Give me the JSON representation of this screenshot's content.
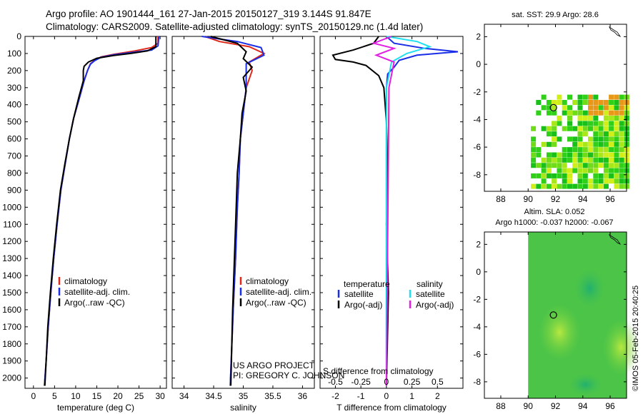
{
  "header": {
    "line1": "Argo profile: AO 1901444_161 27-Jan-2015 20150127_319 3.144S 91.847E",
    "line2": "Climatology: CARS2009. Satellite-adjusted climatology: synTS_20150129.nc (1.4d later)"
  },
  "colors": {
    "climatology": "#e0281a",
    "satellite": "#1a2ee8",
    "argo": "#000000",
    "sat_cyan": "#20e0f0",
    "argo_magenta": "#e020e0"
  },
  "depth_axis": {
    "ticks": [
      0,
      100,
      200,
      300,
      400,
      500,
      600,
      700,
      800,
      900,
      1000,
      1100,
      1200,
      1300,
      1400,
      1500,
      1600,
      1700,
      1800,
      1900,
      2000
    ],
    "range": [
      0,
      2060
    ]
  },
  "chart_data": [
    {
      "type": "line",
      "id": "temperature",
      "xlabel": "temperature (deg C)",
      "xticks": [
        0,
        5,
        10,
        15,
        20,
        25,
        30
      ],
      "xlim": [
        -2,
        31.5
      ],
      "legend": [
        "climatology",
        "satellite-adj. clim.",
        "Argo(..raw -QC)"
      ],
      "series": [
        {
          "name": "climatology",
          "color": "#e0281a",
          "points": [
            [
              29.5,
              0
            ],
            [
              29.5,
              40
            ],
            [
              28,
              65
            ],
            [
              24,
              85
            ],
            [
              19,
              105
            ],
            [
              16,
              120
            ],
            [
              14.5,
              140
            ],
            [
              13.5,
              160
            ],
            [
              12.8,
              200
            ],
            [
              12,
              260
            ],
            [
              11,
              350
            ],
            [
              9.5,
              480
            ],
            [
              8.5,
              600
            ],
            [
              7.5,
              750
            ],
            [
              6.5,
              900
            ],
            [
              5.6,
              1100
            ],
            [
              4.8,
              1300
            ],
            [
              4.1,
              1500
            ],
            [
              3.5,
              1700
            ],
            [
              3.0,
              1900
            ],
            [
              2.6,
              2045
            ]
          ]
        },
        {
          "name": "satellite-adj. clim.",
          "color": "#1a2ee8",
          "points": [
            [
              29.7,
              0
            ],
            [
              29.5,
              55
            ],
            [
              28,
              80
            ],
            [
              24,
              92
            ],
            [
              19,
              108
            ],
            [
              16,
              122
            ],
            [
              14.5,
              142
            ],
            [
              13.5,
              162
            ],
            [
              12.8,
              200
            ],
            [
              12,
              260
            ],
            [
              11,
              350
            ],
            [
              9.5,
              480
            ],
            [
              8.5,
              600
            ],
            [
              7.5,
              750
            ],
            [
              6.5,
              900
            ],
            [
              5.6,
              1100
            ],
            [
              4.8,
              1300
            ],
            [
              4.1,
              1500
            ],
            [
              3.5,
              1700
            ],
            [
              3.0,
              1900
            ],
            [
              2.6,
              2045
            ]
          ]
        },
        {
          "name": "Argo(..raw -QC)",
          "color": "#000000",
          "points": [
            [
              29.0,
              0
            ],
            [
              29.0,
              60
            ],
            [
              27,
              85
            ],
            [
              23,
              100
            ],
            [
              19,
              112
            ],
            [
              15,
              128
            ],
            [
              13,
              150
            ],
            [
              12,
              175
            ],
            [
              11.8,
              200
            ],
            [
              11.8,
              260
            ],
            [
              10.8,
              350
            ],
            [
              9.5,
              480
            ],
            [
              8.5,
              600
            ],
            [
              7.4,
              750
            ],
            [
              6.4,
              900
            ],
            [
              5.5,
              1100
            ],
            [
              4.7,
              1300
            ],
            [
              4.0,
              1500
            ],
            [
              3.4,
              1700
            ],
            [
              3.0,
              1900
            ],
            [
              2.7,
              2045
            ]
          ]
        }
      ]
    },
    {
      "type": "line",
      "id": "salinity",
      "xlabel": "salinity",
      "xticks": [
        34,
        34.5,
        35,
        35.5,
        36
      ],
      "xlim": [
        33.8,
        36.2
      ],
      "legend": [
        "climatology",
        "satellite-adj. clim.",
        "Argo(..raw -QC)"
      ],
      "series": [
        {
          "name": "climatology",
          "color": "#e0281a",
          "points": [
            [
              34.35,
              0
            ],
            [
              34.6,
              30
            ],
            [
              35.1,
              60
            ],
            [
              35.35,
              100
            ],
            [
              35.1,
              150
            ],
            [
              35.15,
              200
            ],
            [
              35.05,
              300
            ],
            [
              35.0,
              450
            ],
            [
              34.95,
              600
            ],
            [
              34.93,
              800
            ],
            [
              34.9,
              1000
            ],
            [
              34.87,
              1300
            ],
            [
              34.83,
              1600
            ],
            [
              34.78,
              2045
            ]
          ]
        },
        {
          "name": "satellite-adj. clim.",
          "color": "#1a2ee8",
          "points": [
            [
              34.3,
              0
            ],
            [
              34.9,
              30
            ],
            [
              35.3,
              65
            ],
            [
              35.35,
              110
            ],
            [
              35.05,
              160
            ],
            [
              35.05,
              200
            ],
            [
              35.05,
              300
            ],
            [
              35.0,
              450
            ],
            [
              34.95,
              600
            ],
            [
              34.93,
              800
            ],
            [
              34.9,
              1000
            ],
            [
              34.87,
              1300
            ],
            [
              34.83,
              1600
            ],
            [
              34.78,
              2045
            ]
          ]
        },
        {
          "name": "Argo(..raw -QC)",
          "color": "#000000",
          "points": [
            [
              34.45,
              0
            ],
            [
              34.9,
              40
            ],
            [
              35.05,
              90
            ],
            [
              35.0,
              130
            ],
            [
              35.15,
              180
            ],
            [
              35.0,
              240
            ],
            [
              35.05,
              320
            ],
            [
              34.98,
              450
            ],
            [
              34.95,
              600
            ],
            [
              34.9,
              800
            ],
            [
              34.88,
              1000
            ],
            [
              34.85,
              1300
            ],
            [
              34.82,
              1600
            ],
            [
              34.79,
              2045
            ]
          ]
        }
      ]
    },
    {
      "type": "line",
      "id": "difference",
      "xlabel": "T difference from climatology",
      "xlabel_top": "S difference from climatology",
      "xticks": [
        -2,
        -1,
        0,
        1,
        2
      ],
      "xticks_top": [
        "-0.5",
        "-0.25",
        "0",
        "0.25",
        "0.5"
      ],
      "xticks_top_pos": [
        -2,
        -1,
        0,
        1,
        2
      ],
      "xlim": [
        -2.6,
        3.0
      ],
      "legend_headers": [
        "temperature",
        "salinity"
      ],
      "legend": [
        "satellite",
        "Argo(-adj)",
        "satellite",
        "Argo(-adj)"
      ],
      "series": [
        {
          "name": "satellite",
          "group": "temperature",
          "color": "#1a2ee8",
          "points": [
            [
              0,
              0
            ],
            [
              0.3,
              40
            ],
            [
              1.5,
              70
            ],
            [
              2.8,
              90
            ],
            [
              1.2,
              110
            ],
            [
              0.5,
              140
            ],
            [
              0.3,
              180
            ],
            [
              0.05,
              220
            ],
            [
              0,
              300
            ],
            [
              0,
              2045
            ]
          ]
        },
        {
          "name": "Argo(-adj)",
          "group": "temperature",
          "color": "#000000",
          "points": [
            [
              -0.3,
              0
            ],
            [
              -0.5,
              40
            ],
            [
              -1.3,
              80
            ],
            [
              -2.1,
              110
            ],
            [
              -2.0,
              135
            ],
            [
              -1.3,
              150
            ],
            [
              -0.8,
              170
            ],
            [
              -0.3,
              230
            ],
            [
              -0.1,
              300
            ],
            [
              0,
              500
            ],
            [
              0.05,
              800
            ],
            [
              0,
              1100
            ],
            [
              0.08,
              1500
            ],
            [
              0,
              2045
            ]
          ]
        },
        {
          "name": "satellite",
          "group": "salinity",
          "color": "#20e0f0",
          "points": [
            [
              0,
              0
            ],
            [
              1.2,
              30
            ],
            [
              1.7,
              60
            ],
            [
              0.8,
              100
            ],
            [
              0.2,
              150
            ],
            [
              0,
              300
            ],
            [
              0,
              2045
            ]
          ]
        },
        {
          "name": "Argo(-adj)",
          "group": "salinity",
          "color": "#e020e0",
          "points": [
            [
              0.2,
              0
            ],
            [
              -0.5,
              40
            ],
            [
              0.3,
              70
            ],
            [
              -0.4,
              110
            ],
            [
              0.3,
              150
            ],
            [
              0.1,
              300
            ],
            [
              0,
              2045
            ]
          ]
        }
      ]
    },
    {
      "type": "heatmap",
      "id": "sst-map",
      "title": "sat. SST: 29.9 Argo: 28.6",
      "xticks": [
        88,
        90,
        92,
        94,
        96
      ],
      "yticks": [
        2,
        0,
        -2,
        -4,
        -6,
        -8
      ],
      "xlim": [
        86.8,
        97.2
      ],
      "ylim": [
        -9.2,
        2.9
      ],
      "argo_position": [
        91.85,
        -3.14
      ]
    },
    {
      "type": "heatmap",
      "id": "sla-map",
      "title": "Altim. SLA: 0.052",
      "subtitle": "Argo h1000: -0.037 h2000: -0.067",
      "xticks": [
        88,
        90,
        92,
        94,
        96
      ],
      "yticks": [
        2,
        0,
        -2,
        -4,
        -6,
        -8
      ],
      "xlim": [
        86.8,
        97.2
      ],
      "ylim": [
        -9.2,
        2.9
      ],
      "argo_position": [
        91.85,
        -3.14
      ]
    }
  ],
  "footer": {
    "project": "US ARGO PROJECT",
    "pi": "PI: GREGORY C. JOHNSON",
    "credit": "©IMOS 05-Feb-2015 20:40:25"
  }
}
